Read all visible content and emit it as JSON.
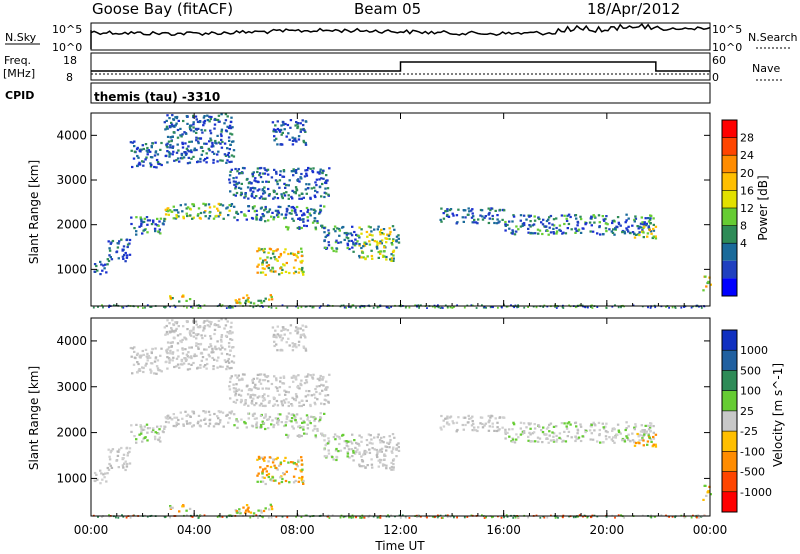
{
  "header": {
    "station": "Goose Bay (fitACF)",
    "beam": "Beam 05",
    "date": "18/Apr/2012"
  },
  "aux_panels": {
    "nsky_label": "N.Sky",
    "nsky_ticks": [
      "10^5",
      "10^0"
    ],
    "nsearch_label": "N.Search",
    "nsearch_ticks": [
      "10^5",
      "10^0"
    ],
    "freq_label": "Freq.",
    "freq_unit": "[MHz]",
    "freq_ticks": [
      "18",
      "8"
    ],
    "nave_label": "Nave",
    "nave_ticks": [
      "60",
      "0"
    ],
    "cpid_label": "CPID",
    "cpid_value": "themis (tau) -3310"
  },
  "chart_data": [
    {
      "type": "heatmap",
      "panel": "power",
      "ylabel": "Slant Range [km]",
      "ylim": [
        180,
        4500
      ],
      "y_ticks": [
        "4000",
        "3000",
        "2000",
        "1000"
      ],
      "y_tick_values": [
        4000,
        3000,
        2000,
        1000
      ],
      "x_ticks": [
        "00:00",
        "04:00",
        "08:00",
        "12:00",
        "16:00",
        "20:00",
        "00:00"
      ],
      "x_tick_hours": [
        0,
        4,
        8,
        12,
        16,
        20,
        24
      ],
      "colorbar_label": "Power [dB]",
      "colorbar_ticks": [
        "28",
        "24",
        "20",
        "16",
        "12",
        "8",
        "4"
      ],
      "colorbar_colors": [
        "#ff0000",
        "#ff4500",
        "#ff8c00",
        "#ffbf00",
        "#e2e000",
        "#66cc33",
        "#2e8b57",
        "#1a6a9a",
        "#2040c0",
        "#0000ff"
      ]
    },
    {
      "type": "heatmap",
      "panel": "velocity",
      "ylabel": "Slant Range [km]",
      "ylim": [
        180,
        4500
      ],
      "y_ticks": [
        "4000",
        "3000",
        "2000",
        "1000"
      ],
      "y_tick_values": [
        4000,
        3000,
        2000,
        1000
      ],
      "x_ticks": [
        "00:00",
        "04:00",
        "08:00",
        "12:00",
        "16:00",
        "20:00",
        "00:00"
      ],
      "x_tick_hours": [
        0,
        4,
        8,
        12,
        16,
        20,
        24
      ],
      "xlabel": "Time UT",
      "colorbar_label": "Velocity [m s^-1]",
      "colorbar_ticks": [
        "1000",
        "500",
        "100",
        "25",
        "-25",
        "-100",
        "-500",
        "-1000"
      ],
      "colorbar_colors": [
        "#1030c0",
        "#2060a0",
        "#2e8b57",
        "#66cc33",
        "#c8c8c8",
        "#ffbf00",
        "#ff8c00",
        "#ff4500",
        "#ff0000"
      ]
    }
  ],
  "bands": [
    {
      "t0": 0.05,
      "t1": 0.6,
      "r0": 900,
      "r1": 1200,
      "mix": "blue"
    },
    {
      "t0": 0.6,
      "t1": 1.5,
      "r0": 1200,
      "r1": 1700,
      "mix": "blue"
    },
    {
      "t0": 1.5,
      "t1": 2.8,
      "r0": 1800,
      "r1": 2200,
      "mix": "bluegreen"
    },
    {
      "t0": 2.8,
      "t1": 5.5,
      "r0": 2150,
      "r1": 2500,
      "mix": "greenyellow"
    },
    {
      "t0": 5.5,
      "t1": 7.5,
      "r0": 2100,
      "r1": 2450,
      "mix": "bluegreen"
    },
    {
      "t0": 7.5,
      "t1": 9.0,
      "r0": 1900,
      "r1": 2450,
      "mix": "bluegreen"
    },
    {
      "t0": 9.0,
      "t1": 10.3,
      "r0": 1400,
      "r1": 2000,
      "mix": "bluegreen"
    },
    {
      "t0": 10.3,
      "t1": 11.9,
      "r0": 1200,
      "r1": 2000,
      "mix": "greenyellow"
    },
    {
      "t0": 6.4,
      "t1": 8.2,
      "r0": 900,
      "r1": 1500,
      "mix": "yellow"
    },
    {
      "t0": 13.5,
      "t1": 16.0,
      "r0": 2050,
      "r1": 2400,
      "mix": "blue"
    },
    {
      "t0": 16.0,
      "t1": 21.8,
      "r0": 1800,
      "r1": 2250,
      "mix": "bluegreen"
    },
    {
      "t0": 21.0,
      "t1": 21.9,
      "r0": 1700,
      "r1": 2000,
      "mix": "yellow"
    },
    {
      "t0": 1.5,
      "t1": 2.7,
      "r0": 3300,
      "r1": 3900,
      "mix": "blue"
    },
    {
      "t0": 2.8,
      "t1": 5.5,
      "r0": 3400,
      "r1": 4500,
      "mix": "blue"
    },
    {
      "t0": 7.0,
      "t1": 8.3,
      "r0": 3800,
      "r1": 4400,
      "mix": "blue"
    },
    {
      "t0": 5.3,
      "t1": 9.2,
      "r0": 2600,
      "r1": 3300,
      "mix": "blue"
    },
    {
      "t0": 3.0,
      "t1": 3.8,
      "r0": 300,
      "r1": 450,
      "mix": "yellow"
    },
    {
      "t0": 5.5,
      "t1": 7.0,
      "r0": 250,
      "r1": 450,
      "mix": "yellow"
    },
    {
      "t0": 23.7,
      "t1": 24.0,
      "r0": 550,
      "r1": 900,
      "mix": "yellow"
    }
  ]
}
